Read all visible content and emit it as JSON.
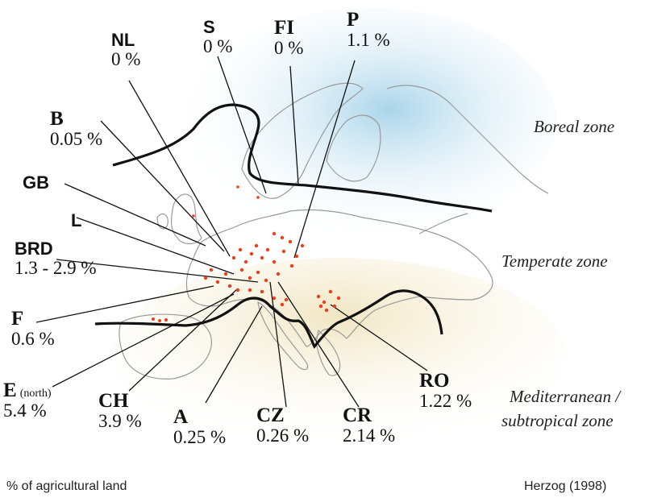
{
  "zones": {
    "boreal": "Boreal zone",
    "temperate": "Temperate zone",
    "mediterranean_line1": "Mediterranean /",
    "mediterranean_line2": "subtropical zone"
  },
  "countries": {
    "nl": {
      "code": "NL",
      "value": "0 %"
    },
    "s": {
      "code": "S",
      "value": "0 %"
    },
    "fi": {
      "code": "FI",
      "value": "0 %"
    },
    "p": {
      "code": "P",
      "value": "1.1 %"
    },
    "b": {
      "code": "B",
      "value": "0.05 %"
    },
    "gb": {
      "code": "GB"
    },
    "l": {
      "code": "L"
    },
    "brd": {
      "code": "BRD",
      "value": "1.3 - 2.9 %"
    },
    "f": {
      "code": "F",
      "value": "0.6 %"
    },
    "e": {
      "code": "E",
      "note": "(north)",
      "value": "5.4 %"
    },
    "ch": {
      "code": "CH",
      "value": "3.9 %"
    },
    "a": {
      "code": "A",
      "value": "0.25 %"
    },
    "cz": {
      "code": "CZ",
      "value": "0.26 %"
    },
    "cr": {
      "code": "CR",
      "value": "2.14 %"
    },
    "ro": {
      "code": "RO",
      "value": "1.22 %"
    }
  },
  "footer": {
    "unit_note": "% of agricultural land",
    "source": "Herzog (1998)"
  },
  "colors": {
    "boreal_fill": "#bfe0ef",
    "mediterranean_fill": "#f4ecd0",
    "dots": "#e8401c",
    "outline": "#9a9a9a"
  }
}
